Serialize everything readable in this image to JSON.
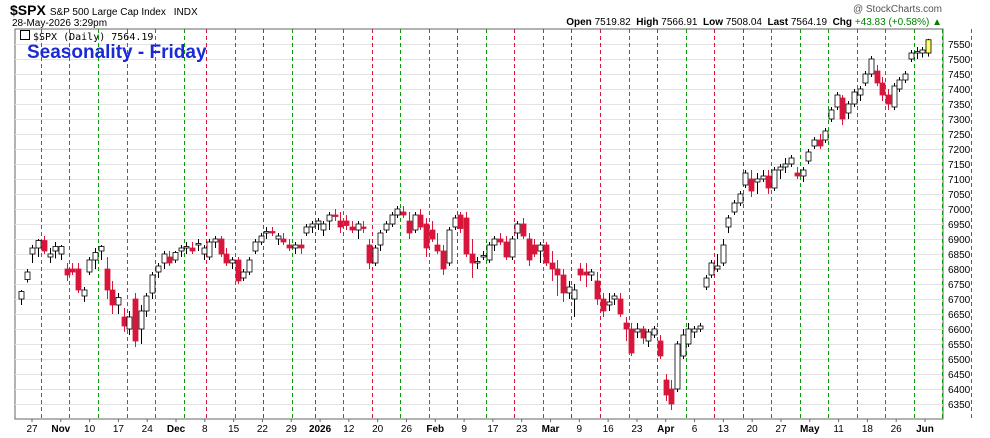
{
  "header": {
    "symbol": "$SPX",
    "description": "S&P 500 Large Cap Index",
    "exchange": "INDX",
    "datetime": "28-May-2026 3:29pm",
    "credit": "@ StockCharts.com",
    "open_label": "Open",
    "open": "7519.82",
    "high_label": "High",
    "high": "7566.91",
    "low_label": "Low",
    "low": "7508.04",
    "last_label": "Last",
    "last": "7564.19",
    "chg_label": "Chg",
    "chg": "+43.83 (+0.58%)",
    "arrow": "▲"
  },
  "legend_text": "$SPX (Daily) 7564.19",
  "colors": {
    "up": "#ffffff",
    "down": "#d8163c",
    "outline": "#000000",
    "latest": "#ffff66",
    "friday_up": "#0a9a0a",
    "friday_down": "#d8163c",
    "title": "#1a2bd6"
  },
  "chart_data": {
    "type": "candlestick",
    "title": "Seasonality - Friday",
    "ylim": [
      6300,
      7600
    ],
    "y_ticks": [
      6350,
      6400,
      6450,
      6500,
      6550,
      6600,
      6650,
      6700,
      6750,
      6800,
      6850,
      6900,
      6950,
      7000,
      7050,
      7100,
      7150,
      7200,
      7250,
      7300,
      7350,
      7400,
      7450,
      7500,
      7550
    ],
    "x_labels": [
      "27",
      "Nov",
      "10",
      "17",
      "24",
      "Dec",
      "8",
      "15",
      "22",
      "29",
      "2026",
      "12",
      "20",
      "26",
      "Feb",
      "9",
      "17",
      "23",
      "Mar",
      "9",
      "16",
      "23",
      "Apr",
      "6",
      "13",
      "20",
      "27",
      "May",
      "11",
      "18",
      "26",
      "Jun"
    ],
    "bold_labels": [
      "Nov",
      "Dec",
      "2026",
      "Feb",
      "Mar",
      "Apr",
      "May",
      "Jun"
    ],
    "friday_markers": [
      {
        "index": 3,
        "direction": "up"
      },
      {
        "index": 8,
        "direction": "up"
      },
      {
        "index": 13,
        "direction": "up"
      },
      {
        "index": 18,
        "direction": "up"
      },
      {
        "index": 23,
        "direction": "up"
      },
      {
        "index": 28,
        "direction": "up"
      },
      {
        "index": 32,
        "direction": "down"
      },
      {
        "index": 37,
        "direction": "up"
      },
      {
        "index": 42,
        "direction": "down"
      },
      {
        "index": 47,
        "direction": "up"
      },
      {
        "index": 51,
        "direction": "down"
      },
      {
        "index": 56,
        "direction": "up"
      },
      {
        "index": 61,
        "direction": "down"
      },
      {
        "index": 66,
        "direction": "up"
      },
      {
        "index": 71,
        "direction": "up"
      },
      {
        "index": 76,
        "direction": "down"
      },
      {
        "index": 81,
        "direction": "up"
      },
      {
        "index": 86,
        "direction": "down"
      },
      {
        "index": 91,
        "direction": "up"
      },
      {
        "index": 96,
        "direction": "down"
      },
      {
        "index": 101,
        "direction": "down"
      },
      {
        "index": 106,
        "direction": "up"
      },
      {
        "index": 111,
        "direction": "down"
      },
      {
        "index": 116,
        "direction": "up"
      },
      {
        "index": 121,
        "direction": "down"
      },
      {
        "index": 126,
        "direction": "down"
      },
      {
        "index": 131,
        "direction": "up"
      },
      {
        "index": 136,
        "direction": "up"
      },
      {
        "index": 141,
        "direction": "up"
      },
      {
        "index": 146,
        "direction": "up"
      },
      {
        "index": 151,
        "direction": "up"
      },
      {
        "index": 156,
        "direction": "up"
      },
      {
        "index": 161,
        "direction": "up"
      },
      {
        "index": 166,
        "direction": "up"
      },
      {
        "index": 171,
        "direction": "up"
      },
      {
        "index": 176,
        "direction": "up"
      },
      {
        "index": 181,
        "direction": "up"
      }
    ],
    "candles": [
      {
        "o": 6700,
        "h": 6730,
        "l": 6680,
        "c": 6725
      },
      {
        "o": 6765,
        "h": 6800,
        "l": 6755,
        "c": 6790
      },
      {
        "o": 6850,
        "h": 6880,
        "l": 6820,
        "c": 6870
      },
      {
        "o": 6870,
        "h": 6900,
        "l": 6840,
        "c": 6895
      },
      {
        "o": 6895,
        "h": 6910,
        "l": 6850,
        "c": 6860
      },
      {
        "o": 6840,
        "h": 6870,
        "l": 6820,
        "c": 6850
      },
      {
        "o": 6860,
        "h": 6890,
        "l": 6835,
        "c": 6875
      },
      {
        "o": 6850,
        "h": 6880,
        "l": 6830,
        "c": 6875
      },
      {
        "o": 6800,
        "h": 6820,
        "l": 6760,
        "c": 6780
      },
      {
        "o": 6800,
        "h": 6820,
        "l": 6780,
        "c": 6790
      },
      {
        "o": 6800,
        "h": 6820,
        "l": 6720,
        "c": 6730
      },
      {
        "o": 6710,
        "h": 6740,
        "l": 6690,
        "c": 6730
      },
      {
        "o": 6790,
        "h": 6840,
        "l": 6780,
        "c": 6830
      },
      {
        "o": 6830,
        "h": 6870,
        "l": 6800,
        "c": 6855
      },
      {
        "o": 6860,
        "h": 6880,
        "l": 6830,
        "c": 6875
      },
      {
        "o": 6800,
        "h": 6840,
        "l": 6700,
        "c": 6730
      },
      {
        "o": 6730,
        "h": 6760,
        "l": 6650,
        "c": 6680
      },
      {
        "o": 6680,
        "h": 6720,
        "l": 6650,
        "c": 6705
      },
      {
        "o": 6640,
        "h": 6670,
        "l": 6590,
        "c": 6610
      },
      {
        "o": 6600,
        "h": 6660,
        "l": 6580,
        "c": 6640
      },
      {
        "o": 6700,
        "h": 6720,
        "l": 6540,
        "c": 6560
      },
      {
        "o": 6600,
        "h": 6680,
        "l": 6550,
        "c": 6660
      },
      {
        "o": 6660,
        "h": 6720,
        "l": 6640,
        "c": 6710
      },
      {
        "o": 6720,
        "h": 6790,
        "l": 6700,
        "c": 6780
      },
      {
        "o": 6790,
        "h": 6820,
        "l": 6770,
        "c": 6810
      },
      {
        "o": 6820,
        "h": 6860,
        "l": 6800,
        "c": 6850
      },
      {
        "o": 6840,
        "h": 6860,
        "l": 6810,
        "c": 6820
      },
      {
        "o": 6830,
        "h": 6860,
        "l": 6820,
        "c": 6855
      },
      {
        "o": 6860,
        "h": 6880,
        "l": 6840,
        "c": 6870
      },
      {
        "o": 6870,
        "h": 6890,
        "l": 6850,
        "c": 6875
      },
      {
        "o": 6870,
        "h": 6890,
        "l": 6850,
        "c": 6860
      },
      {
        "o": 6880,
        "h": 6900,
        "l": 6860,
        "c": 6885
      },
      {
        "o": 6850,
        "h": 6880,
        "l": 6830,
        "c": 6870
      },
      {
        "o": 6840,
        "h": 6900,
        "l": 6830,
        "c": 6890
      },
      {
        "o": 6890,
        "h": 6910,
        "l": 6870,
        "c": 6900
      },
      {
        "o": 6900,
        "h": 6910,
        "l": 6840,
        "c": 6850
      },
      {
        "o": 6850,
        "h": 6870,
        "l": 6810,
        "c": 6820
      },
      {
        "o": 6820,
        "h": 6840,
        "l": 6800,
        "c": 6830
      },
      {
        "o": 6830,
        "h": 6840,
        "l": 6750,
        "c": 6760
      },
      {
        "o": 6770,
        "h": 6800,
        "l": 6760,
        "c": 6790
      },
      {
        "o": 6790,
        "h": 6840,
        "l": 6780,
        "c": 6830
      },
      {
        "o": 6860,
        "h": 6900,
        "l": 6850,
        "c": 6890
      },
      {
        "o": 6890,
        "h": 6920,
        "l": 6880,
        "c": 6910
      },
      {
        "o": 6920,
        "h": 6940,
        "l": 6900,
        "c": 6925
      },
      {
        "o": 6925,
        "h": 6940,
        "l": 6910,
        "c": 6920
      },
      {
        "o": 6900,
        "h": 6920,
        "l": 6880,
        "c": 6910
      },
      {
        "o": 6900,
        "h": 6920,
        "l": 6880,
        "c": 6890
      },
      {
        "o": 6880,
        "h": 6900,
        "l": 6860,
        "c": 6870
      },
      {
        "o": 6870,
        "h": 6890,
        "l": 6850,
        "c": 6880
      },
      {
        "o": 6880,
        "h": 6900,
        "l": 6850,
        "c": 6870
      },
      {
        "o": 6920,
        "h": 6950,
        "l": 6910,
        "c": 6940
      },
      {
        "o": 6940,
        "h": 6960,
        "l": 6920,
        "c": 6950
      },
      {
        "o": 6950,
        "h": 6970,
        "l": 6930,
        "c": 6960
      },
      {
        "o": 6930,
        "h": 6960,
        "l": 6910,
        "c": 6950
      },
      {
        "o": 6960,
        "h": 6990,
        "l": 6930,
        "c": 6980
      },
      {
        "o": 6980,
        "h": 7000,
        "l": 6960,
        "c": 6975
      },
      {
        "o": 6960,
        "h": 6990,
        "l": 6920,
        "c": 6940
      },
      {
        "o": 6960,
        "h": 6980,
        "l": 6930,
        "c": 6945
      },
      {
        "o": 6940,
        "h": 6960,
        "l": 6920,
        "c": 6930
      },
      {
        "o": 6930,
        "h": 6960,
        "l": 6900,
        "c": 6950
      },
      {
        "o": 6940,
        "h": 6960,
        "l": 6920,
        "c": 6935
      },
      {
        "o": 6880,
        "h": 6900,
        "l": 6800,
        "c": 6820
      },
      {
        "o": 6820,
        "h": 6880,
        "l": 6810,
        "c": 6870
      },
      {
        "o": 6880,
        "h": 6930,
        "l": 6860,
        "c": 6920
      },
      {
        "o": 6930,
        "h": 6960,
        "l": 6920,
        "c": 6950
      },
      {
        "o": 6950,
        "h": 6990,
        "l": 6940,
        "c": 6980
      },
      {
        "o": 6980,
        "h": 7010,
        "l": 6970,
        "c": 7000
      },
      {
        "o": 6990,
        "h": 7010,
        "l": 6970,
        "c": 6980
      },
      {
        "o": 6960,
        "h": 6990,
        "l": 6900,
        "c": 6920
      },
      {
        "o": 6930,
        "h": 6990,
        "l": 6920,
        "c": 6980
      },
      {
        "o": 6980,
        "h": 7000,
        "l": 6930,
        "c": 6940
      },
      {
        "o": 6950,
        "h": 6970,
        "l": 6840,
        "c": 6870
      },
      {
        "o": 6930,
        "h": 6960,
        "l": 6890,
        "c": 6900
      },
      {
        "o": 6880,
        "h": 6920,
        "l": 6850,
        "c": 6860
      },
      {
        "o": 6860,
        "h": 6880,
        "l": 6780,
        "c": 6800
      },
      {
        "o": 6820,
        "h": 6940,
        "l": 6810,
        "c": 6930
      },
      {
        "o": 6940,
        "h": 6980,
        "l": 6930,
        "c": 6970
      },
      {
        "o": 6980,
        "h": 6990,
        "l": 6920,
        "c": 6935
      },
      {
        "o": 6970,
        "h": 6990,
        "l": 6840,
        "c": 6850
      },
      {
        "o": 6850,
        "h": 6900,
        "l": 6770,
        "c": 6820
      },
      {
        "o": 6820,
        "h": 6840,
        "l": 6800,
        "c": 6825
      },
      {
        "o": 6840,
        "h": 6860,
        "l": 6830,
        "c": 6845
      },
      {
        "o": 6830,
        "h": 6890,
        "l": 6820,
        "c": 6880
      },
      {
        "o": 6880,
        "h": 6910,
        "l": 6860,
        "c": 6900
      },
      {
        "o": 6900,
        "h": 6920,
        "l": 6880,
        "c": 6890
      },
      {
        "o": 6890,
        "h": 6910,
        "l": 6830,
        "c": 6840
      },
      {
        "o": 6840,
        "h": 6910,
        "l": 6830,
        "c": 6900
      },
      {
        "o": 6920,
        "h": 6960,
        "l": 6900,
        "c": 6950
      },
      {
        "o": 6950,
        "h": 6970,
        "l": 6900,
        "c": 6910
      },
      {
        "o": 6900,
        "h": 6920,
        "l": 6810,
        "c": 6830
      },
      {
        "o": 6880,
        "h": 6900,
        "l": 6840,
        "c": 6850
      },
      {
        "o": 6860,
        "h": 6890,
        "l": 6820,
        "c": 6880
      },
      {
        "o": 6880,
        "h": 6890,
        "l": 6810,
        "c": 6820
      },
      {
        "o": 6820,
        "h": 6860,
        "l": 6760,
        "c": 6800
      },
      {
        "o": 6800,
        "h": 6830,
        "l": 6710,
        "c": 6780
      },
      {
        "o": 6780,
        "h": 6800,
        "l": 6690,
        "c": 6720
      },
      {
        "o": 6720,
        "h": 6760,
        "l": 6700,
        "c": 6740
      },
      {
        "o": 6700,
        "h": 6750,
        "l": 6640,
        "c": 6730
      },
      {
        "o": 6800,
        "h": 6820,
        "l": 6760,
        "c": 6780
      },
      {
        "o": 6790,
        "h": 6820,
        "l": 6740,
        "c": 6780
      },
      {
        "o": 6780,
        "h": 6800,
        "l": 6760,
        "c": 6790
      },
      {
        "o": 6760,
        "h": 6790,
        "l": 6680,
        "c": 6700
      },
      {
        "o": 6700,
        "h": 6720,
        "l": 6640,
        "c": 6660
      },
      {
        "o": 6680,
        "h": 6720,
        "l": 6660,
        "c": 6690
      },
      {
        "o": 6700,
        "h": 6720,
        "l": 6680,
        "c": 6710
      },
      {
        "o": 6700,
        "h": 6720,
        "l": 6640,
        "c": 6650
      },
      {
        "o": 6620,
        "h": 6640,
        "l": 6560,
        "c": 6600
      },
      {
        "o": 6600,
        "h": 6620,
        "l": 6510,
        "c": 6520
      },
      {
        "o": 6590,
        "h": 6620,
        "l": 6570,
        "c": 6600
      },
      {
        "o": 6600,
        "h": 6610,
        "l": 6550,
        "c": 6570
      },
      {
        "o": 6560,
        "h": 6600,
        "l": 6540,
        "c": 6590
      },
      {
        "o": 6580,
        "h": 6610,
        "l": 6570,
        "c": 6600
      },
      {
        "o": 6560,
        "h": 6580,
        "l": 6500,
        "c": 6510
      },
      {
        "o": 6430,
        "h": 6450,
        "l": 6360,
        "c": 6380
      },
      {
        "o": 6400,
        "h": 6430,
        "l": 6330,
        "c": 6350
      },
      {
        "o": 6400,
        "h": 6560,
        "l": 6390,
        "c": 6550
      },
      {
        "o": 6510,
        "h": 6600,
        "l": 6500,
        "c": 6580
      },
      {
        "o": 6550,
        "h": 6620,
        "l": 6540,
        "c": 6600
      },
      {
        "o": 6590,
        "h": 6610,
        "l": 6570,
        "c": 6600
      },
      {
        "o": 6600,
        "h": 6620,
        "l": 6590,
        "c": 6610
      },
      {
        "o": 6740,
        "h": 6780,
        "l": 6730,
        "c": 6770
      },
      {
        "o": 6780,
        "h": 6830,
        "l": 6770,
        "c": 6820
      },
      {
        "o": 6800,
        "h": 6850,
        "l": 6790,
        "c": 6810
      },
      {
        "o": 6820,
        "h": 6900,
        "l": 6810,
        "c": 6880
      },
      {
        "o": 6940,
        "h": 6980,
        "l": 6920,
        "c": 6970
      },
      {
        "o": 6990,
        "h": 7030,
        "l": 6980,
        "c": 7020
      },
      {
        "o": 7020,
        "h": 7060,
        "l": 7010,
        "c": 7050
      },
      {
        "o": 7080,
        "h": 7130,
        "l": 7070,
        "c": 7120
      },
      {
        "o": 7100,
        "h": 7130,
        "l": 7040,
        "c": 7060
      },
      {
        "o": 7090,
        "h": 7120,
        "l": 7050,
        "c": 7100
      },
      {
        "o": 7100,
        "h": 7130,
        "l": 7090,
        "c": 7110
      },
      {
        "o": 7110,
        "h": 7130,
        "l": 7050,
        "c": 7070
      },
      {
        "o": 7070,
        "h": 7140,
        "l": 7060,
        "c": 7130
      },
      {
        "o": 7130,
        "h": 7150,
        "l": 7100,
        "c": 7140
      },
      {
        "o": 7140,
        "h": 7170,
        "l": 7120,
        "c": 7150
      },
      {
        "o": 7150,
        "h": 7180,
        "l": 7140,
        "c": 7170
      },
      {
        "o": 7120,
        "h": 7140,
        "l": 7100,
        "c": 7110
      },
      {
        "o": 7110,
        "h": 7140,
        "l": 7090,
        "c": 7130
      },
      {
        "o": 7160,
        "h": 7200,
        "l": 7150,
        "c": 7190
      },
      {
        "o": 7210,
        "h": 7240,
        "l": 7200,
        "c": 7230
      },
      {
        "o": 7230,
        "h": 7250,
        "l": 7200,
        "c": 7210
      },
      {
        "o": 7230,
        "h": 7270,
        "l": 7220,
        "c": 7260
      },
      {
        "o": 7300,
        "h": 7340,
        "l": 7290,
        "c": 7330
      },
      {
        "o": 7340,
        "h": 7390,
        "l": 7330,
        "c": 7380
      },
      {
        "o": 7370,
        "h": 7380,
        "l": 7280,
        "c": 7300
      },
      {
        "o": 7320,
        "h": 7360,
        "l": 7300,
        "c": 7350
      },
      {
        "o": 7350,
        "h": 7400,
        "l": 7340,
        "c": 7390
      },
      {
        "o": 7380,
        "h": 7410,
        "l": 7360,
        "c": 7400
      },
      {
        "o": 7420,
        "h": 7460,
        "l": 7410,
        "c": 7450
      },
      {
        "o": 7450,
        "h": 7510,
        "l": 7440,
        "c": 7500
      },
      {
        "o": 7460,
        "h": 7480,
        "l": 7410,
        "c": 7420
      },
      {
        "o": 7420,
        "h": 7440,
        "l": 7360,
        "c": 7380
      },
      {
        "o": 7380,
        "h": 7400,
        "l": 7330,
        "c": 7350
      },
      {
        "o": 7340,
        "h": 7420,
        "l": 7330,
        "c": 7410
      },
      {
        "o": 7400,
        "h": 7440,
        "l": 7390,
        "c": 7430
      },
      {
        "o": 7430,
        "h": 7460,
        "l": 7420,
        "c": 7450
      },
      {
        "o": 7500,
        "h": 7530,
        "l": 7490,
        "c": 7520
      },
      {
        "o": 7520,
        "h": 7540,
        "l": 7500,
        "c": 7525
      },
      {
        "o": 7520,
        "h": 7540,
        "l": 7505,
        "c": 7530
      },
      {
        "o": 7519.82,
        "h": 7566.91,
        "l": 7508.04,
        "c": 7564.19
      }
    ]
  }
}
